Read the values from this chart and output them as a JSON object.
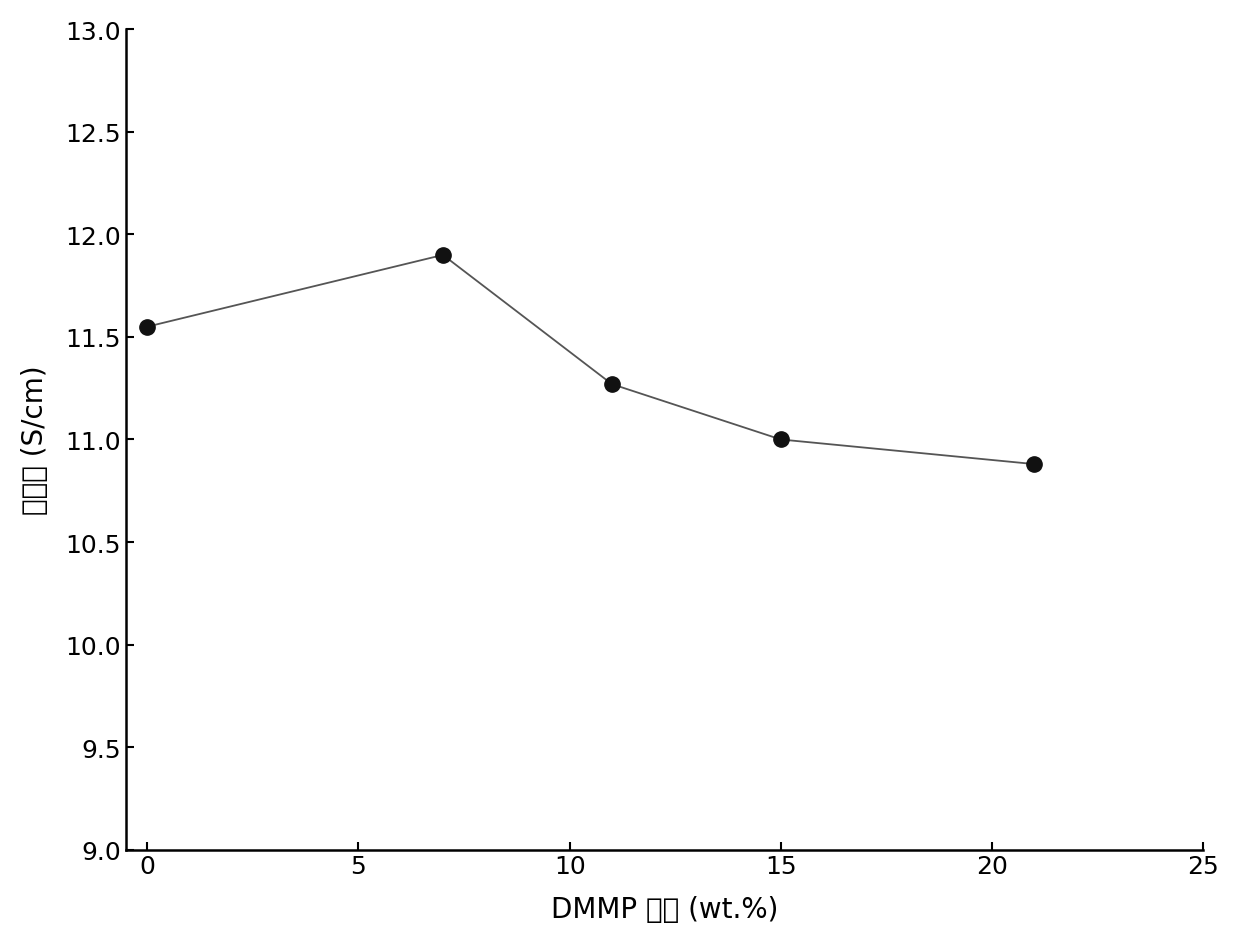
{
  "x": [
    0,
    7,
    11,
    15,
    21
  ],
  "y": [
    11.55,
    11.9,
    11.27,
    11.0,
    10.88
  ],
  "xlabel": "DMMP 含量 (wt.%)",
  "ylabel": "电导率 (S/cm)",
  "xlim": [
    -0.5,
    25
  ],
  "ylim": [
    9.0,
    13.0
  ],
  "xticks": [
    0,
    5,
    10,
    15,
    20,
    25
  ],
  "yticks": [
    9.0,
    9.5,
    10.0,
    10.5,
    11.0,
    11.5,
    12.0,
    12.5,
    13.0
  ],
  "line_color": "#555555",
  "marker_color": "#111111",
  "marker_size": 11,
  "linewidth": 1.3,
  "background_color": "#ffffff",
  "label_fontsize": 20,
  "tick_fontsize": 18
}
